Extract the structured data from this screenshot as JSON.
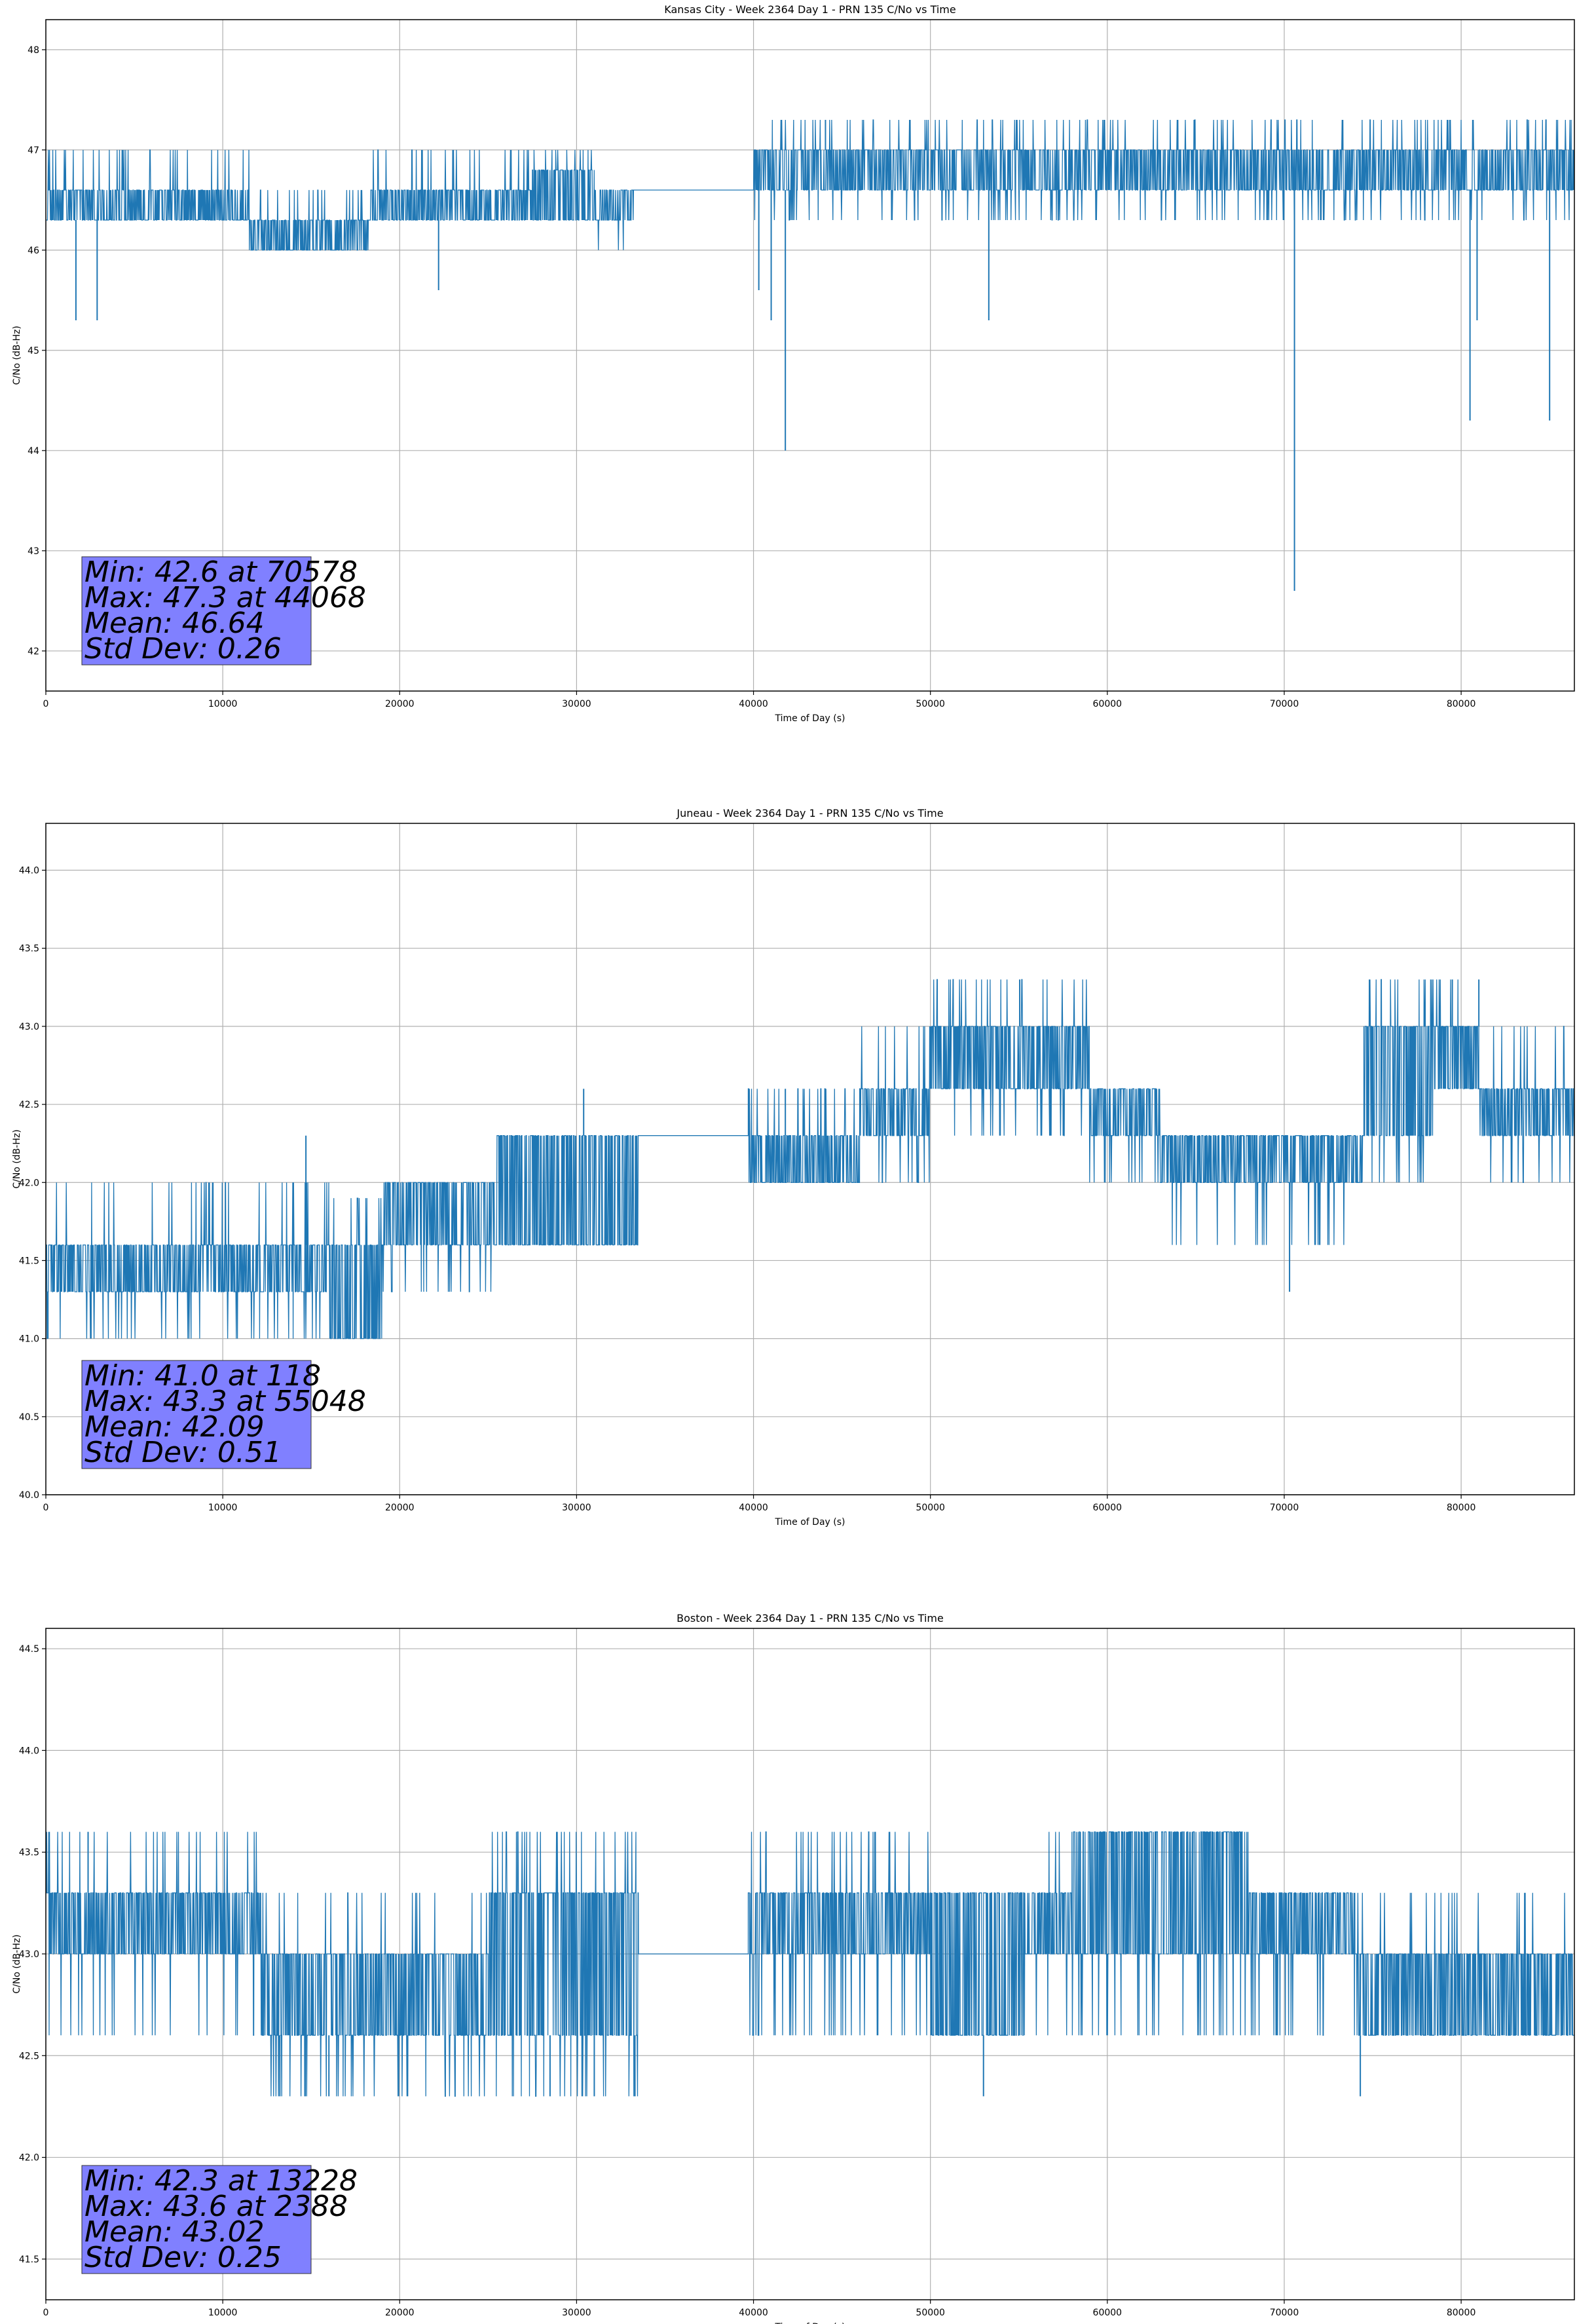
{
  "chart_data": [
    {
      "type": "line",
      "title": "Kansas City - Week 2364 Day 1 - PRN 135 C/No vs Time",
      "xlabel": "Time of Day (s)",
      "ylabel": "C/No (dB-Hz)",
      "xlim": [
        0,
        86400
      ],
      "ylim": [
        41.6,
        48.3
      ],
      "xticks": [
        0,
        10000,
        20000,
        30000,
        40000,
        50000,
        60000,
        70000,
        80000
      ],
      "yticks": [
        42,
        43,
        44,
        45,
        46,
        47,
        48
      ],
      "grid": true,
      "series_color": "#1f77b4",
      "stats_box": {
        "lines": [
          "Min: 42.6 at 70578",
          "Max: 47.3 at 44068",
          "Mean: 46.64",
          "Std Dev: 0.26"
        ],
        "color": "#8080ff"
      },
      "bands": [
        {
          "x": [
            0,
            11500
          ],
          "y": [
            46.3,
            46.6
          ],
          "flicker": [
            46.3,
            47.0
          ]
        },
        {
          "x": [
            11500,
            18300
          ],
          "y": [
            46.0,
            46.3
          ],
          "flicker": [
            46.0,
            46.6
          ]
        },
        {
          "x": [
            18300,
            27500
          ],
          "y": [
            46.3,
            46.6
          ],
          "flicker": [
            46.3,
            47.0
          ]
        },
        {
          "x": [
            27500,
            31000
          ],
          "y": [
            46.3,
            46.8
          ],
          "flicker": [
            46.3,
            47.0
          ]
        },
        {
          "x": [
            31000,
            33300
          ],
          "y": [
            46.3,
            46.6
          ],
          "flicker": [
            46.0,
            46.6
          ]
        },
        {
          "x": [
            33300,
            40000
          ],
          "y": [
            46.6,
            46.6
          ],
          "flicker": [
            46.6,
            46.6
          ]
        },
        {
          "x": [
            40000,
            76200
          ],
          "y": [
            46.6,
            47.0
          ],
          "flicker": [
            46.3,
            47.3
          ]
        },
        {
          "x": [
            76200,
            86400
          ],
          "y": [
            46.6,
            47.0
          ],
          "flicker": [
            46.3,
            47.3
          ]
        }
      ],
      "spikes": [
        {
          "x": 1700,
          "y": 45.3
        },
        {
          "x": 2900,
          "y": 45.3
        },
        {
          "x": 22200,
          "y": 45.6
        },
        {
          "x": 40300,
          "y": 45.6
        },
        {
          "x": 41000,
          "y": 45.3
        },
        {
          "x": 41800,
          "y": 44.0
        },
        {
          "x": 53300,
          "y": 45.3
        },
        {
          "x": 70578,
          "y": 42.6
        },
        {
          "x": 80500,
          "y": 44.3
        },
        {
          "x": 80900,
          "y": 45.3
        },
        {
          "x": 85000,
          "y": 44.3
        },
        {
          "x": 44068,
          "y": 47.3
        }
      ]
    },
    {
      "type": "line",
      "title": "Juneau - Week 2364 Day 1 - PRN 135 C/No vs Time",
      "xlabel": "Time of Day (s)",
      "ylabel": "C/No (dB-Hz)",
      "xlim": [
        0,
        86400
      ],
      "ylim": [
        40.0,
        44.3
      ],
      "xticks": [
        0,
        10000,
        20000,
        30000,
        40000,
        50000,
        60000,
        70000,
        80000
      ],
      "yticks": [
        40.0,
        40.5,
        41.0,
        41.5,
        42.0,
        42.5,
        43.0,
        43.5,
        44.0
      ],
      "grid": true,
      "series_color": "#1f77b4",
      "stats_box": {
        "lines": [
          "Min: 41.0 at 118",
          "Max: 43.3 at 55048",
          "Mean: 42.09",
          "Std Dev: 0.51"
        ],
        "color": "#8080ff"
      },
      "bands": [
        {
          "x": [
            0,
            1500
          ],
          "y": [
            41.3,
            41.6
          ],
          "flicker": [
            41.0,
            42.0
          ]
        },
        {
          "x": [
            1500,
            10000
          ],
          "y": [
            41.3,
            41.6
          ],
          "flicker": [
            41.0,
            42.0
          ]
        },
        {
          "x": [
            10000,
            16000
          ],
          "y": [
            41.3,
            41.6
          ],
          "flicker": [
            41.0,
            42.0
          ]
        },
        {
          "x": [
            16000,
            19000
          ],
          "y": [
            41.0,
            41.6
          ],
          "flicker": [
            41.0,
            41.9
          ]
        },
        {
          "x": [
            19000,
            25500
          ],
          "y": [
            41.6,
            42.0
          ],
          "flicker": [
            41.3,
            42.0
          ]
        },
        {
          "x": [
            25500,
            33500
          ],
          "y": [
            41.6,
            42.3
          ],
          "flicker": [
            41.6,
            42.3
          ]
        },
        {
          "x": [
            33500,
            39700
          ],
          "y": [
            42.3,
            42.3
          ],
          "flicker": [
            42.3,
            42.3
          ]
        },
        {
          "x": [
            39700,
            46000
          ],
          "y": [
            42.0,
            42.3
          ],
          "flicker": [
            42.0,
            42.6
          ]
        },
        {
          "x": [
            46000,
            50000
          ],
          "y": [
            42.3,
            42.6
          ],
          "flicker": [
            42.0,
            43.0
          ]
        },
        {
          "x": [
            50000,
            59000
          ],
          "y": [
            42.6,
            43.0
          ],
          "flicker": [
            42.3,
            43.3
          ]
        },
        {
          "x": [
            59000,
            63000
          ],
          "y": [
            42.3,
            42.6
          ],
          "flicker": [
            42.0,
            42.6
          ]
        },
        {
          "x": [
            63000,
            74500
          ],
          "y": [
            42.0,
            42.3
          ],
          "flicker": [
            41.6,
            42.3
          ]
        },
        {
          "x": [
            74500,
            78500
          ],
          "y": [
            42.3,
            43.0
          ],
          "flicker": [
            42.0,
            43.3
          ]
        },
        {
          "x": [
            78500,
            81000
          ],
          "y": [
            42.6,
            43.0
          ],
          "flicker": [
            42.6,
            43.3
          ]
        },
        {
          "x": [
            81000,
            86400
          ],
          "y": [
            42.3,
            42.6
          ],
          "flicker": [
            42.0,
            43.0
          ]
        }
      ],
      "spikes": [
        {
          "x": 118,
          "y": 41.0
        },
        {
          "x": 14700,
          "y": 42.3
        },
        {
          "x": 30400,
          "y": 42.6
        },
        {
          "x": 41800,
          "y": 42.6
        },
        {
          "x": 55048,
          "y": 43.3
        },
        {
          "x": 70300,
          "y": 41.3
        },
        {
          "x": 79500,
          "y": 43.3
        },
        {
          "x": 81000,
          "y": 43.3
        }
      ]
    },
    {
      "type": "line",
      "title": "Boston - Week 2364 Day 1 - PRN 135 C/No vs Time",
      "xlabel": "Time of Day (s)",
      "ylabel": "C/No (dB-Hz)",
      "xlim": [
        0,
        86400
      ],
      "ylim": [
        41.3,
        44.6
      ],
      "xticks": [
        0,
        10000,
        20000,
        30000,
        40000,
        50000,
        60000,
        70000,
        80000
      ],
      "yticks": [
        41.5,
        42.0,
        42.5,
        43.0,
        43.5,
        44.0,
        44.5
      ],
      "grid": true,
      "series_color": "#1f77b4",
      "stats_box": {
        "lines": [
          "Min: 42.3 at 13228",
          "Max: 43.6 at 2388",
          "Mean: 43.02",
          "Std Dev: 0.25"
        ],
        "color": "#8080ff"
      },
      "bands": [
        {
          "x": [
            0,
            12200
          ],
          "y": [
            43.0,
            43.3
          ],
          "flicker": [
            42.6,
            43.6
          ]
        },
        {
          "x": [
            12200,
            25000
          ],
          "y": [
            42.6,
            43.0
          ],
          "flicker": [
            42.3,
            43.3
          ]
        },
        {
          "x": [
            25000,
            33500
          ],
          "y": [
            42.6,
            43.3
          ],
          "flicker": [
            42.3,
            43.6
          ]
        },
        {
          "x": [
            33500,
            39700
          ],
          "y": [
            43.0,
            43.0
          ],
          "flicker": [
            43.0,
            43.0
          ]
        },
        {
          "x": [
            39700,
            50000
          ],
          "y": [
            43.0,
            43.3
          ],
          "flicker": [
            42.6,
            43.6
          ]
        },
        {
          "x": [
            50000,
            55200
          ],
          "y": [
            42.6,
            43.3
          ],
          "flicker": [
            42.6,
            43.3
          ]
        },
        {
          "x": [
            55200,
            58000
          ],
          "y": [
            43.0,
            43.3
          ],
          "flicker": [
            42.6,
            43.6
          ]
        },
        {
          "x": [
            58000,
            68000
          ],
          "y": [
            43.0,
            43.6
          ],
          "flicker": [
            42.6,
            43.6
          ]
        },
        {
          "x": [
            68000,
            74000
          ],
          "y": [
            43.0,
            43.3
          ],
          "flicker": [
            42.6,
            43.3
          ]
        },
        {
          "x": [
            74000,
            86400
          ],
          "y": [
            42.6,
            43.0
          ],
          "flicker": [
            42.6,
            43.3
          ]
        }
      ],
      "spikes": [
        {
          "x": 2388,
          "y": 43.6
        },
        {
          "x": 13228,
          "y": 42.3
        },
        {
          "x": 16000,
          "y": 42.3
        },
        {
          "x": 28500,
          "y": 42.3
        },
        {
          "x": 31000,
          "y": 42.3
        },
        {
          "x": 33300,
          "y": 42.3
        },
        {
          "x": 53000,
          "y": 42.3
        },
        {
          "x": 74300,
          "y": 42.3
        }
      ]
    }
  ]
}
